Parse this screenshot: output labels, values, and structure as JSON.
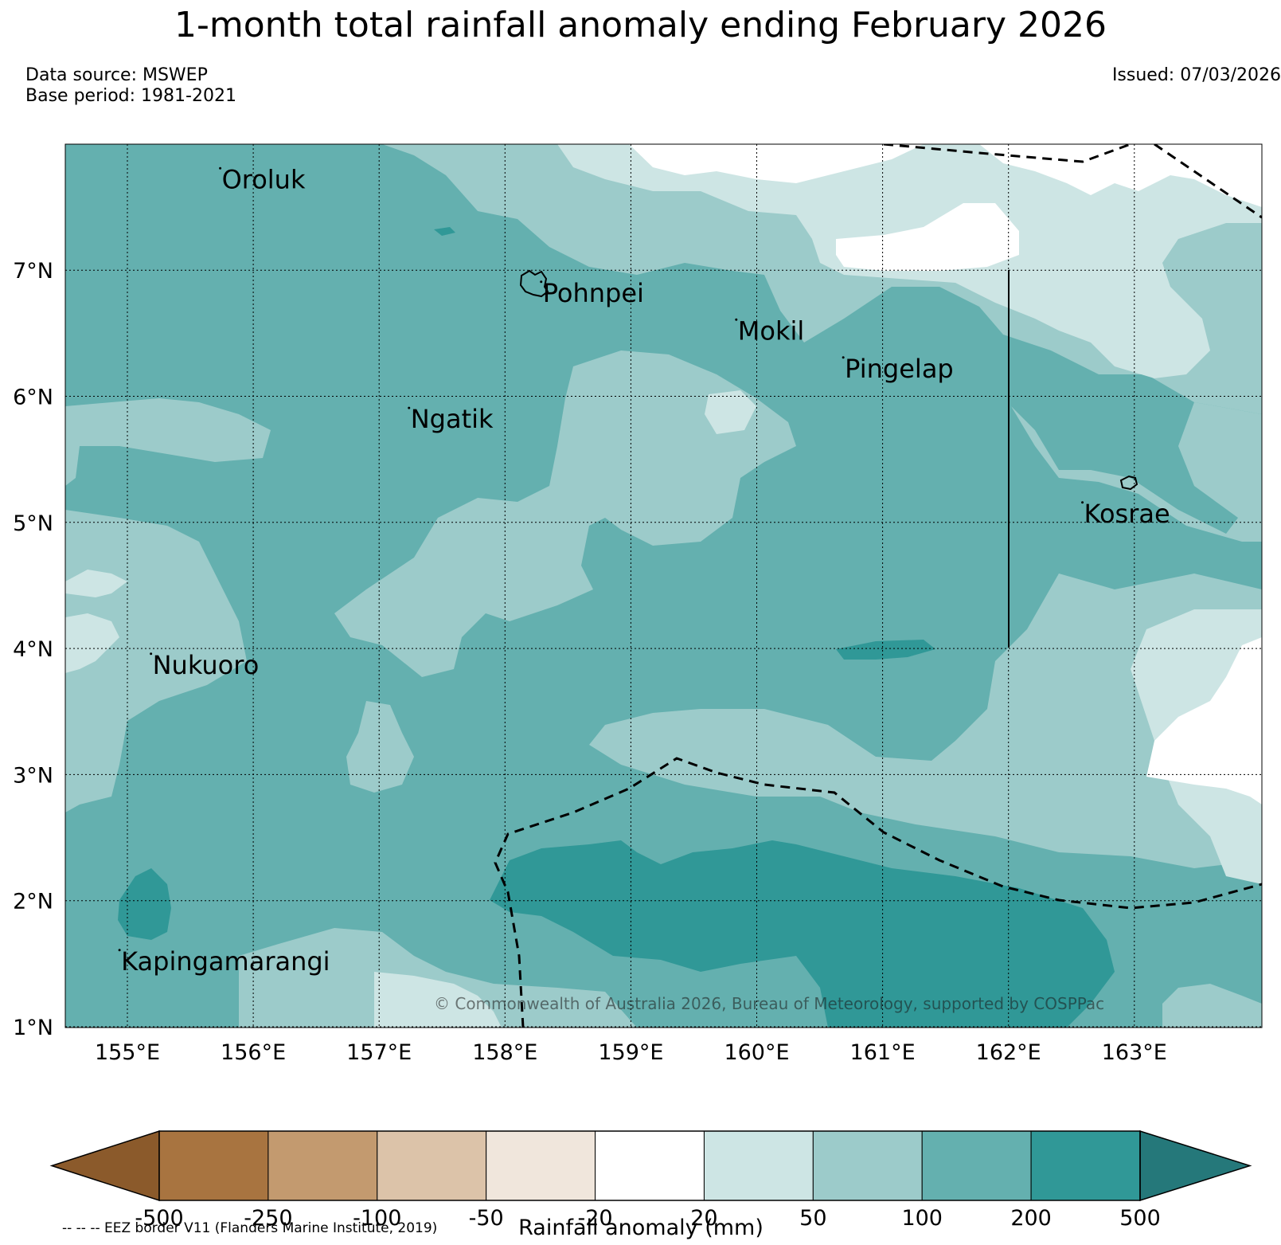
{
  "title": "1-month total rainfall anomaly ending February 2026",
  "data_source": "Data source: MSWEP",
  "base_period": "Base period: 1981-2021",
  "issued": "Issued: 07/03/2026",
  "copyright": "© Commonwealth of Australia 2026, Bureau of Meteorology, supported by COSPPac",
  "eez_note": "-- -- -- EEZ border V11 (Flanders Marine Institute, 2019)",
  "map": {
    "lon_range": [
      154.5,
      164.0
    ],
    "lat_range": [
      1.0,
      8.0
    ],
    "lon_ticks": [
      {
        "value": 155,
        "label": "155°E"
      },
      {
        "value": 156,
        "label": "156°E"
      },
      {
        "value": 157,
        "label": "157°E"
      },
      {
        "value": 158,
        "label": "158°E"
      },
      {
        "value": 159,
        "label": "159°E"
      },
      {
        "value": 160,
        "label": "160°E"
      },
      {
        "value": 161,
        "label": "161°E"
      },
      {
        "value": 162,
        "label": "162°E"
      },
      {
        "value": 163,
        "label": "163°E"
      }
    ],
    "lat_ticks": [
      {
        "value": 1,
        "label": "1°N"
      },
      {
        "value": 2,
        "label": "2°N"
      },
      {
        "value": 3,
        "label": "3°N"
      },
      {
        "value": 4,
        "label": "4°N"
      },
      {
        "value": 5,
        "label": "5°N"
      },
      {
        "value": 6,
        "label": "6°N"
      },
      {
        "value": 7,
        "label": "7°N"
      }
    ],
    "places": [
      {
        "name": "Oroluk",
        "lon": 155.75,
        "lat": 7.65
      },
      {
        "name": "Pohnpei",
        "lon": 158.3,
        "lat": 6.75
      },
      {
        "name": "Mokil",
        "lon": 159.85,
        "lat": 6.45
      },
      {
        "name": "Pingelap",
        "lon": 160.7,
        "lat": 6.15
      },
      {
        "name": "Ngatik",
        "lon": 157.25,
        "lat": 5.75
      },
      {
        "name": "Kosrae",
        "lon": 162.6,
        "lat": 5.0
      },
      {
        "name": "Nukuoro",
        "lon": 155.2,
        "lat": 3.8
      },
      {
        "name": "Kapingamarangi",
        "lon": 154.95,
        "lat": 1.45
      }
    ]
  },
  "colorbar": {
    "title": "Rainfall anomaly (mm)",
    "ticks": [
      "-500",
      "-250",
      "-100",
      "-50",
      "-20",
      "20",
      "50",
      "100",
      "200",
      "500"
    ],
    "colors": [
      "#8b5a2b",
      "#a87440",
      "#c39a6f",
      "#dcc3a9",
      "#f0e6dc",
      "#ffffff",
      "#cde5e4",
      "#9ccbca",
      "#64b0af",
      "#309897",
      "#25787a"
    ]
  }
}
